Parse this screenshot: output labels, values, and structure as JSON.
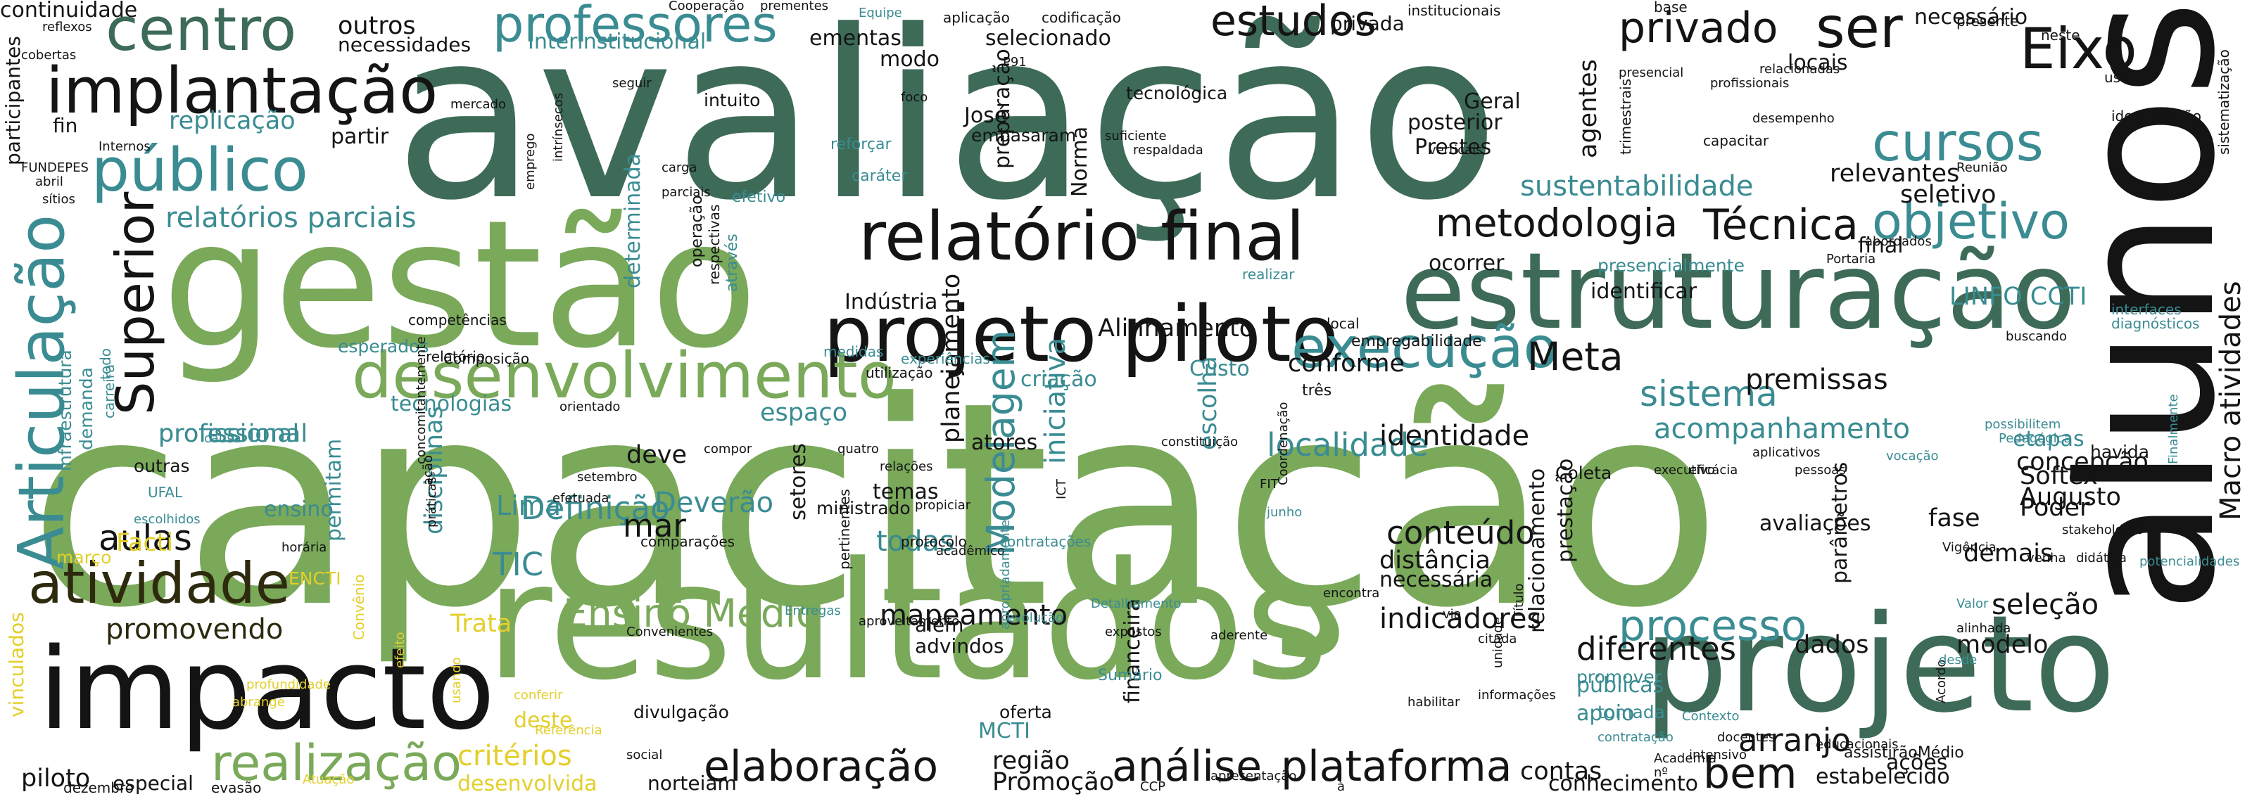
{
  "palette": {
    "dark_green": "#3d6b58",
    "light_green": "#7aa95a",
    "teal": "#3a8c92",
    "black": "#141414",
    "olive": "#2d2a0e",
    "yellow": "#e3cf2b"
  },
  "words": [
    "avaliação",
    "capacitação",
    "alunos",
    "resultados",
    "gestão",
    "projeto",
    "estruturação",
    "projeto piloto",
    "impacto",
    "relatório final",
    "desenvolvimento",
    "execução",
    "atividade",
    "Articulação",
    "público",
    "implantação",
    "centro",
    "professores",
    "cursos",
    "objetivo",
    "ser",
    "Eixo",
    "estudos",
    "privado",
    "Técnica",
    "metodologia",
    "Superior",
    "realização",
    "análise",
    "plataforma",
    "elaboração",
    "bem",
    "Ensino Médio",
    "processo",
    "Modelagem",
    "Meta",
    "sistema",
    "aulas",
    "localidade",
    "conteúdo",
    "Definição",
    "acompanhamento",
    "seleção",
    "diferentes",
    "promovendo",
    "critérios",
    "mapeamento",
    "indicadores",
    "arranjo",
    "premissas",
    "Macro atividades",
    "identidade",
    "relatórios parciais",
    "replicação",
    "continuidade",
    "participantes",
    "necessidades",
    "professional",
    "profissional",
    "Facti",
    "TIC",
    "Lima",
    "mar",
    "Deverão",
    "todas",
    "escolha",
    "iniciativa",
    "planejamento",
    "sustentabilidade",
    "relevantes",
    "seletivo",
    "LINFO CCTI",
    "Alinhamento",
    "conforme",
    "deve",
    "espaço",
    "criação",
    "Custo",
    "ocorrer",
    "Indústria",
    "financeira",
    "Softex",
    "Poder",
    "concepção",
    "fase",
    "demais",
    "Augusto",
    "modelo",
    "dados",
    "apoio",
    "públicas",
    "MCTI",
    "região",
    "Promoção",
    "norteiam",
    "contas",
    "conhecimento",
    "estabelecido",
    "ações",
    "tomada",
    "promover",
    "piloto",
    "especial",
    "dezembro",
    "evasão",
    "desenvolvida",
    "deste",
    "Trata",
    "ensino",
    "infraestrutura",
    "demanda",
    "tecnologias",
    "esperados",
    "outros",
    "ementas",
    "modo",
    "selecionado",
    "tecnológica",
    "José",
    "Geral",
    "posterior",
    "Prestes",
    "agentes",
    "locais",
    "necessário",
    "privada",
    "Interinstitucional",
    "partir",
    "fin",
    "outras",
    "ministrado",
    "temas",
    "setores",
    "disciplinas",
    "permitam",
    "atores",
    "ENCTI",
    "divulgação",
    "oferta",
    "além",
    "advindos",
    "distância",
    "necessária",
    "avaliações",
    "Coleta",
    "identificar",
    "final",
    "presencialmente",
    "relacionamento",
    "prestação",
    "parâmetros",
    "etapas",
    "havida",
    "Norma",
    "preparação",
    "embasaram",
    "intuito",
    "aplicação",
    "codificação",
    "institucionais",
    "base",
    "presente",
    "neste",
    "uso",
    "identificação",
    "sistematização",
    "interfaces",
    "diagnósticos",
    "Cooperação",
    "prementes",
    "Equipe",
    "reflexos",
    "cobertas",
    "Internos",
    "FUNDEPES",
    "abril",
    "sítios",
    "mercado",
    "emprego",
    "intrínsecos",
    "carga",
    "parciais",
    "seguir",
    "foco",
    "P91",
    "suficiente",
    "respaldada",
    "verticais",
    "trimestrais",
    "capacitar",
    "presencial",
    "profissionais",
    "relacionadas",
    "desempenho",
    "Reunião",
    "abordados",
    "Portaria",
    "buscando",
    "possibilitem",
    "Pedagógica",
    "vocação",
    "Vigência",
    "junho",
    "FIT",
    "Coordenação",
    "aplicativos",
    "pessoas",
    "eficácia",
    "executivo",
    "constituição",
    "quatro",
    "compor",
    "relações",
    "propiciar",
    "acadêmico",
    "ICT",
    "comparações",
    "protocolo",
    "contratações",
    "pertinentes",
    "utilização",
    "medidas",
    "experiências",
    "respectivas",
    "local",
    "através",
    "determinada",
    "operação",
    "efetivo",
    "caráter",
    "reforçar",
    "realizar",
    "três",
    "empregabilidade",
    "competências",
    "relatório",
    "Composição",
    "carreira",
    "todo",
    "causa",
    "orientado",
    "setembro",
    "efetuada",
    "UFAL",
    "escolhidos",
    "horária",
    "ação",
    "práticas",
    "concomitantemente",
    "março",
    "Convênio",
    "efeito",
    "usando",
    "conferir",
    "Referência",
    "profundidade",
    "abrange",
    "Atuação",
    "vinculados",
    "Convenientes",
    "Entregas",
    "aproveitamento",
    "apropriadamente",
    "evolução",
    "Detalhamento",
    "expostos",
    "encontra",
    "aderente",
    "citada",
    "informações",
    "unidade",
    "Título",
    "via",
    "Sumário",
    "habilitar",
    "contratação",
    "Contexto",
    "Academia",
    "nº",
    "intensivo",
    "docentes",
    "educacionais",
    "assistirãoMédio",
    "Acordo",
    "alinhada",
    "desde",
    "Valor",
    "venha",
    "didática",
    "Finalmente",
    "potencialidades",
    "stakeholders",
    "social",
    "apresentação",
    "à",
    "CCP"
  ]
}
